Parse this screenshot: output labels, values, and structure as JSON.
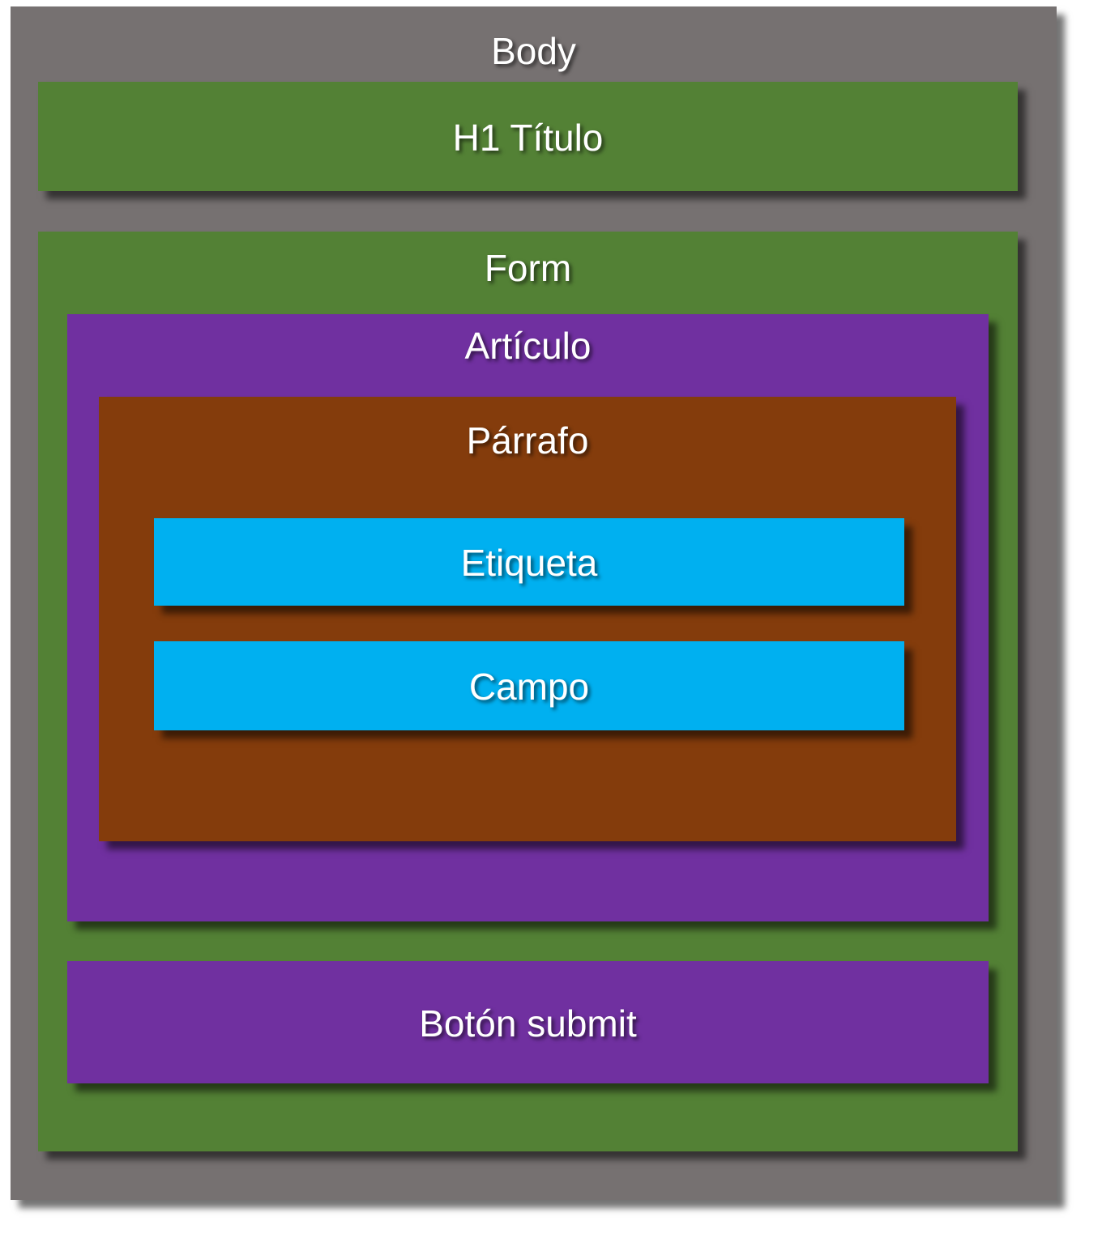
{
  "diagram": {
    "body": {
      "label": "Body",
      "color": "#767171"
    },
    "h1": {
      "label": "H1 Título",
      "color": "#538135"
    },
    "form": {
      "label": "Form",
      "color": "#538135"
    },
    "article": {
      "label": "Artículo",
      "color": "#7030a0"
    },
    "paragraph": {
      "label": "Párrafo",
      "color": "#843c0c"
    },
    "label_box": {
      "label": "Etiqueta",
      "color": "#00b0f0"
    },
    "field_box": {
      "label": "Campo",
      "color": "#00b0f0"
    },
    "submit_box": {
      "label": "Botón submit",
      "color": "#7030a0"
    }
  }
}
